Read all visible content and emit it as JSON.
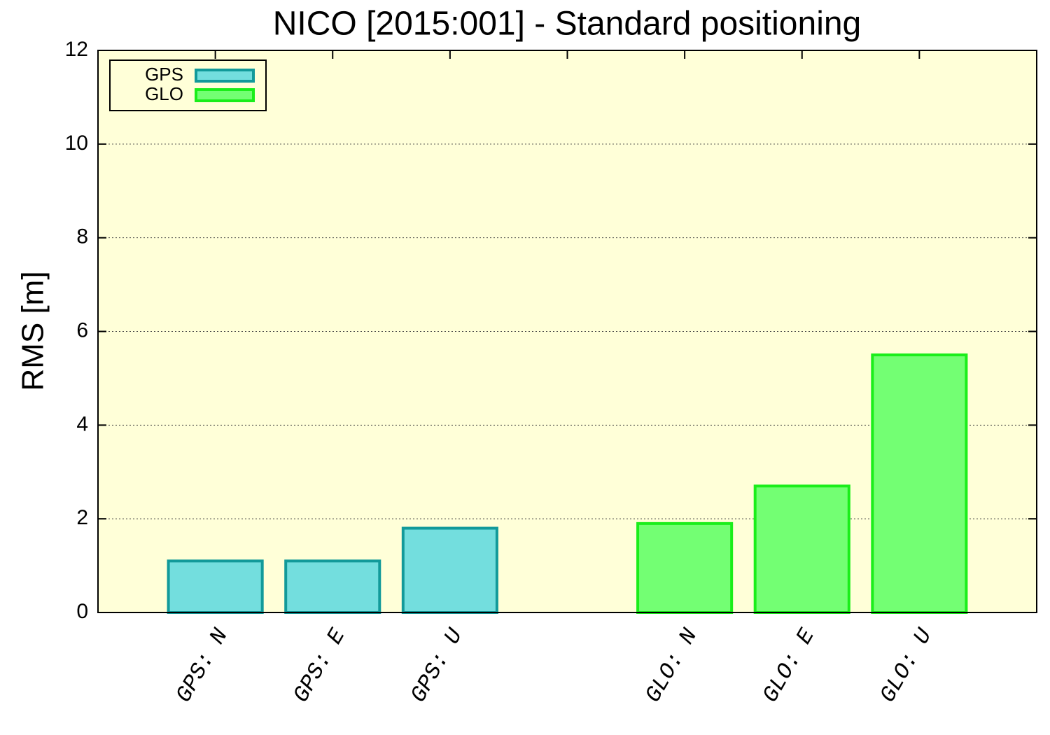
{
  "chart_data": {
    "type": "bar",
    "title": "NICO [2015:001] - Standard positioning",
    "y_label": "RMS [m]",
    "categories": [
      "GPS: N",
      "GPS: E",
      "GPS: U",
      null,
      "GLO: N",
      "GLO: E",
      "GLO: U"
    ],
    "series": [
      {
        "name": "GPS",
        "color": "#73dede",
        "edge_color": "#129a9a",
        "values": [
          1.1,
          1.1,
          1.8,
          null,
          null,
          null,
          null
        ]
      },
      {
        "name": "GLO",
        "color": "#73ff73",
        "edge_color": "#1aee1a",
        "values": [
          null,
          null,
          null,
          null,
          1.9,
          2.7,
          5.5
        ]
      }
    ],
    "ylim": [
      0,
      12
    ],
    "yticks": [
      0,
      2,
      4,
      6,
      8,
      10,
      12
    ],
    "grid": true,
    "legend": "upper left",
    "background": "#ffffd8"
  }
}
